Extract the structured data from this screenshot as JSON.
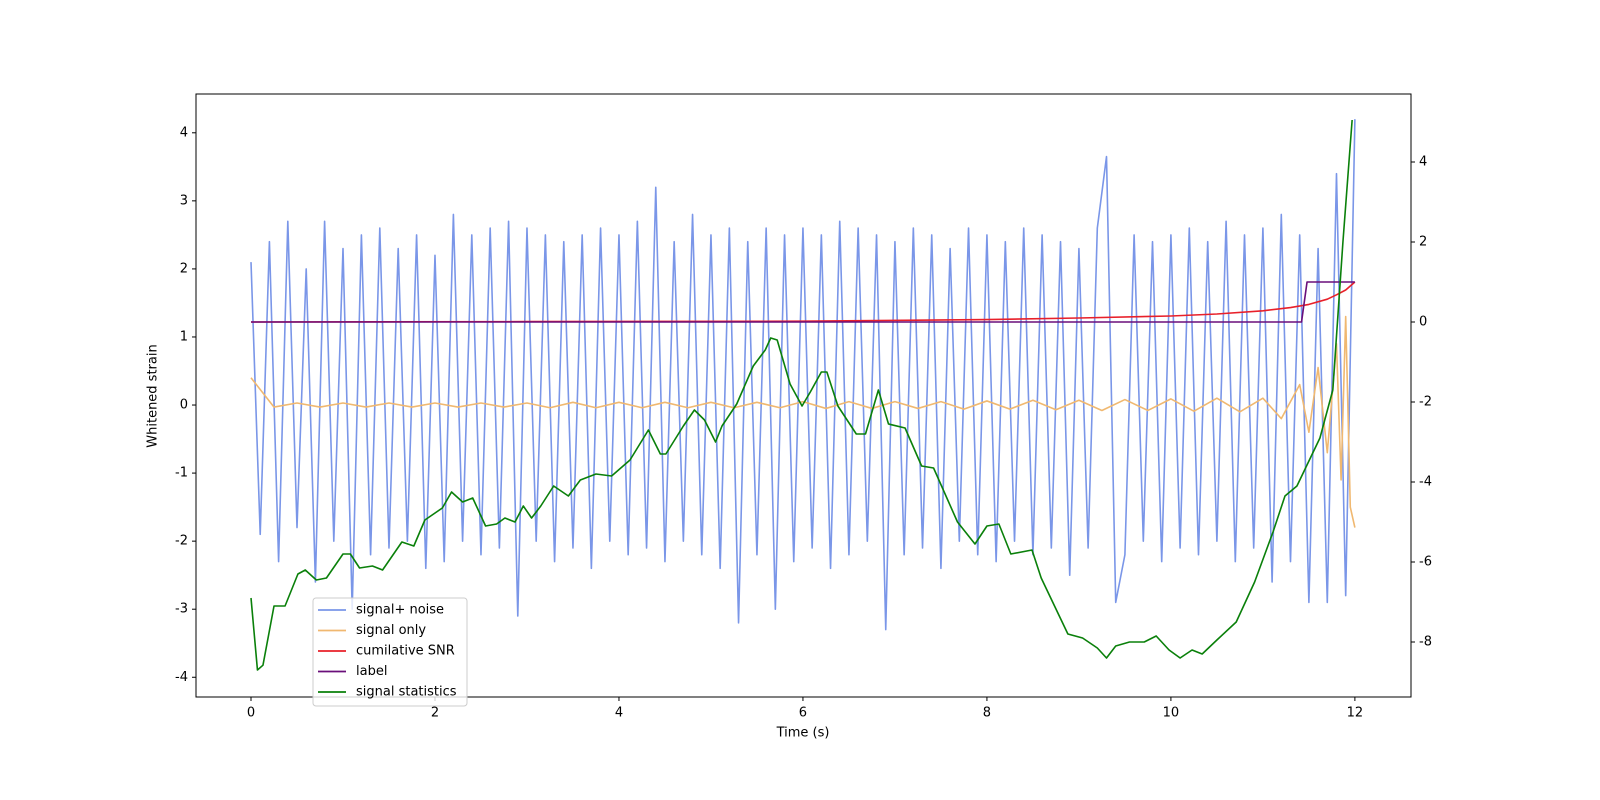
{
  "chart_data": {
    "type": "line",
    "xlabel": "Time (s)",
    "ylabel": "Whitened strain",
    "xlim": [
      -0.598,
      12.61
    ],
    "xticks": [
      0,
      2,
      4,
      6,
      8,
      10,
      12
    ],
    "ylim": [
      -4.29,
      4.57
    ],
    "yticks": [
      -4,
      -3,
      -2,
      -1,
      0,
      1,
      2,
      3,
      4
    ],
    "y2lim": [
      -9.375,
      5.7
    ],
    "y2ticks": [
      -8,
      -6,
      -4,
      -2,
      0,
      2,
      4
    ],
    "legend": "lower left",
    "series": [
      {
        "name": "signal+ noise",
        "color": "#7a96e8",
        "x": [
          0,
          0.1,
          0.2,
          0.3,
          0.4,
          0.5,
          0.6,
          0.7,
          0.8,
          0.9,
          1,
          1.1,
          1.2,
          1.3,
          1.4,
          1.5,
          1.6,
          1.7,
          1.8,
          1.9,
          2,
          2.1,
          2.2,
          2.3,
          2.4,
          2.5,
          2.6,
          2.7,
          2.8,
          2.9,
          3,
          3.1,
          3.2,
          3.3,
          3.4,
          3.5,
          3.6,
          3.7,
          3.8,
          3.9,
          4,
          4.1,
          4.2,
          4.3,
          4.4,
          4.5,
          4.6,
          4.7,
          4.8,
          4.9,
          5,
          5.1,
          5.2,
          5.3,
          5.4,
          5.5,
          5.6,
          5.7,
          5.8,
          5.9,
          6,
          6.1,
          6.2,
          6.3,
          6.4,
          6.5,
          6.6,
          6.7,
          6.8,
          6.9,
          7,
          7.1,
          7.2,
          7.3,
          7.4,
          7.5,
          7.6,
          7.7,
          7.8,
          7.9,
          8,
          8.1,
          8.2,
          8.3,
          8.4,
          8.5,
          8.6,
          8.7,
          8.8,
          8.9,
          9,
          9.1,
          9.2,
          9.3,
          9.4,
          9.5,
          9.6,
          9.7,
          9.8,
          9.9,
          10,
          10.1,
          10.2,
          10.3,
          10.4,
          10.5,
          10.6,
          10.7,
          10.8,
          10.9,
          11,
          11.1,
          11.2,
          11.3,
          11.4,
          11.5,
          11.6,
          11.7,
          11.8,
          11.9,
          12
        ],
        "values": [
          2.1,
          -1.9,
          2.4,
          -2.3,
          2.7,
          -1.8,
          2.0,
          -2.6,
          2.7,
          -2.0,
          2.3,
          -3.0,
          2.5,
          -2.2,
          2.6,
          -2.1,
          2.3,
          -2.0,
          2.5,
          -2.4,
          2.2,
          -2.3,
          2.8,
          -2.0,
          2.5,
          -2.2,
          2.6,
          -2.1,
          2.7,
          -3.1,
          2.6,
          -2.0,
          2.5,
          -2.3,
          2.4,
          -2.1,
          2.5,
          -2.4,
          2.6,
          -2.0,
          2.5,
          -2.2,
          2.7,
          -2.1,
          3.2,
          -2.3,
          2.4,
          -2.0,
          2.8,
          -2.2,
          2.5,
          -2.4,
          2.6,
          -3.2,
          2.4,
          -2.2,
          2.6,
          -3.0,
          2.5,
          -2.3,
          2.6,
          -2.1,
          2.5,
          -2.4,
          2.7,
          -2.2,
          2.6,
          -2.0,
          2.5,
          -3.3,
          2.4,
          -2.2,
          2.6,
          -2.1,
          2.5,
          -2.4,
          2.3,
          -2.0,
          2.6,
          -2.2,
          2.5,
          -2.3,
          2.4,
          -2.0,
          2.6,
          -2.2,
          2.5,
          -2.1,
          2.4,
          -2.5,
          2.3,
          -2.1,
          2.6,
          3.65,
          -2.9,
          -2.2,
          2.5,
          -2.0,
          2.4,
          -2.3,
          2.5,
          -2.1,
          2.6,
          -2.2,
          2.4,
          -2.0,
          2.7,
          -2.3,
          2.5,
          -2.1,
          2.6,
          -2.6,
          2.8,
          -2.3,
          2.5,
          -2.9,
          2.3,
          -2.9,
          3.4,
          -2.8,
          4.2
        ]
      },
      {
        "name": "signal only",
        "color": "#f0b870",
        "x": [
          0,
          0.25,
          0.5,
          0.75,
          1,
          1.25,
          1.5,
          1.75,
          2,
          2.25,
          2.5,
          2.75,
          3,
          3.25,
          3.5,
          3.75,
          4,
          4.25,
          4.5,
          4.75,
          5,
          5.25,
          5.5,
          5.75,
          6,
          6.25,
          6.5,
          6.75,
          7,
          7.25,
          7.5,
          7.75,
          8,
          8.25,
          8.5,
          8.75,
          9,
          9.25,
          9.5,
          9.75,
          10,
          10.25,
          10.5,
          10.75,
          11,
          11.2,
          11.4,
          11.5,
          11.6,
          11.7,
          11.8,
          11.85,
          11.9,
          11.95,
          12
        ],
        "values": [
          0.4,
          -0.03,
          0.03,
          -0.03,
          0.03,
          -0.03,
          0.03,
          -0.03,
          0.03,
          -0.03,
          0.03,
          -0.03,
          0.03,
          -0.04,
          0.04,
          -0.04,
          0.04,
          -0.04,
          0.04,
          -0.04,
          0.04,
          -0.04,
          0.04,
          -0.04,
          0.05,
          -0.05,
          0.05,
          -0.05,
          0.05,
          -0.05,
          0.05,
          -0.06,
          0.06,
          -0.06,
          0.07,
          -0.07,
          0.07,
          -0.08,
          0.08,
          -0.08,
          0.09,
          -0.09,
          0.1,
          -0.1,
          0.1,
          -0.2,
          0.3,
          -0.4,
          0.55,
          -0.7,
          0.9,
          -1.1,
          1.3,
          -1.5,
          -1.8
        ]
      },
      {
        "name": "cumilative SNR",
        "color": "#e8202a",
        "axis": "y2",
        "x": [
          0,
          3,
          6,
          8,
          9,
          10,
          10.5,
          11,
          11.3,
          11.5,
          11.7,
          11.8,
          11.9,
          12
        ],
        "values": [
          0,
          0.01,
          0.02,
          0.06,
          0.1,
          0.15,
          0.2,
          0.28,
          0.36,
          0.44,
          0.57,
          0.68,
          0.8,
          1.0
        ]
      },
      {
        "name": "label",
        "color": "#6a0f7a",
        "axis": "y2",
        "x": [
          0,
          11.42,
          11.48,
          12
        ],
        "values": [
          0,
          0,
          1,
          1
        ]
      },
      {
        "name": "signal statistics",
        "color": "#0a800a",
        "axis": "y2",
        "x": [
          0,
          0.07,
          0.13,
          0.25,
          0.37,
          0.51,
          0.59,
          0.71,
          0.82,
          1.0,
          1.08,
          1.18,
          1.32,
          1.43,
          1.64,
          1.77,
          1.89,
          2.08,
          2.18,
          2.3,
          2.41,
          2.55,
          2.67,
          2.76,
          2.87,
          2.96,
          3.05,
          3.15,
          3.29,
          3.45,
          3.58,
          3.75,
          3.92,
          4.12,
          4.32,
          4.45,
          4.51,
          4.7,
          4.82,
          4.93,
          5.05,
          5.12,
          5.28,
          5.46,
          5.59,
          5.65,
          5.72,
          5.86,
          5.99,
          6.08,
          6.2,
          6.26,
          6.38,
          6.58,
          6.68,
          6.82,
          6.93,
          7.11,
          7.29,
          7.42,
          7.68,
          7.87,
          8.0,
          8.13,
          8.26,
          8.49,
          8.59,
          8.88,
          9.04,
          9.2,
          9.3,
          9.4,
          9.55,
          9.71,
          9.84,
          9.98,
          10.1,
          10.23,
          10.34,
          10.5,
          10.71,
          10.91,
          11.11,
          11.24,
          11.37,
          11.62,
          11.76,
          11.87,
          11.97
        ],
        "values": [
          -6.9,
          -8.7,
          -8.58,
          -7.1,
          -7.1,
          -6.3,
          -6.2,
          -6.45,
          -6.4,
          -5.8,
          -5.8,
          -6.15,
          -6.1,
          -6.2,
          -5.5,
          -5.6,
          -4.95,
          -4.65,
          -4.25,
          -4.5,
          -4.4,
          -5.1,
          -5.05,
          -4.9,
          -5.0,
          -4.6,
          -4.9,
          -4.6,
          -4.1,
          -4.35,
          -3.95,
          -3.8,
          -3.85,
          -3.45,
          -2.7,
          -3.3,
          -3.3,
          -2.6,
          -2.2,
          -2.45,
          -3.0,
          -2.6,
          -2.05,
          -1.1,
          -0.7,
          -0.4,
          -0.45,
          -1.55,
          -2.1,
          -1.75,
          -1.25,
          -1.25,
          -2.1,
          -2.8,
          -2.8,
          -1.7,
          -2.55,
          -2.65,
          -3.6,
          -3.65,
          -5.0,
          -5.55,
          -5.1,
          -5.05,
          -5.8,
          -5.7,
          -6.4,
          -7.8,
          -7.9,
          -8.15,
          -8.4,
          -8.1,
          -8.0,
          -8.0,
          -7.85,
          -8.2,
          -8.4,
          -8.2,
          -8.3,
          -7.95,
          -7.5,
          -6.5,
          -5.25,
          -4.35,
          -4.1,
          -2.9,
          -1.7,
          2.0,
          5.05
        ]
      }
    ]
  }
}
